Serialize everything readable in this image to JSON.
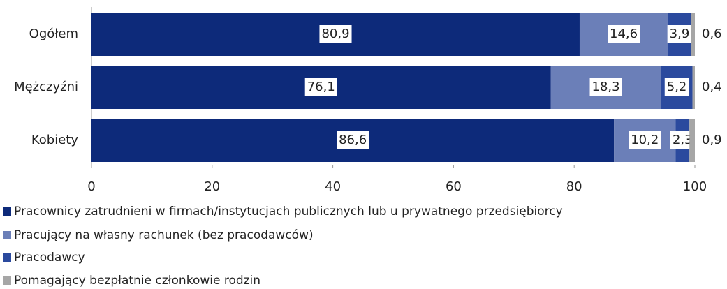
{
  "chart_data": {
    "type": "stacked-bar-horizontal",
    "categories": [
      "Ogółem",
      "Mężczyźni",
      "Kobiety"
    ],
    "series": [
      {
        "name": "Pracownicy zatrudnieni w firmach/instytucjach publicznych lub u prywatnego przedsiębiorcy",
        "color": "#0d2a7a",
        "values": [
          80.9,
          76.1,
          86.6
        ],
        "value_labels": [
          "80,9",
          "76,1",
          "86,6"
        ]
      },
      {
        "name": "Pracujący na własny rachunek (bez pracodawców)",
        "color": "#6b7fb8",
        "values": [
          14.6,
          18.3,
          10.2
        ],
        "value_labels": [
          "14,6",
          "18,3",
          "10,2"
        ]
      },
      {
        "name": "Pracodawcy",
        "color": "#2b4a9e",
        "values": [
          3.9,
          5.2,
          2.3
        ],
        "value_labels": [
          "3,9",
          "5,2",
          "2,3"
        ]
      },
      {
        "name": "Pomagający bezpłatnie członkowie rodzin",
        "color": "#a6a6a6",
        "values": [
          0.6,
          0.4,
          0.9
        ],
        "value_labels": [
          "0,6",
          "0,4",
          "0,9"
        ]
      }
    ],
    "xlim": [
      0,
      100
    ],
    "xticks": [
      0,
      20,
      40,
      60,
      80,
      100
    ],
    "legend": "bottom"
  }
}
